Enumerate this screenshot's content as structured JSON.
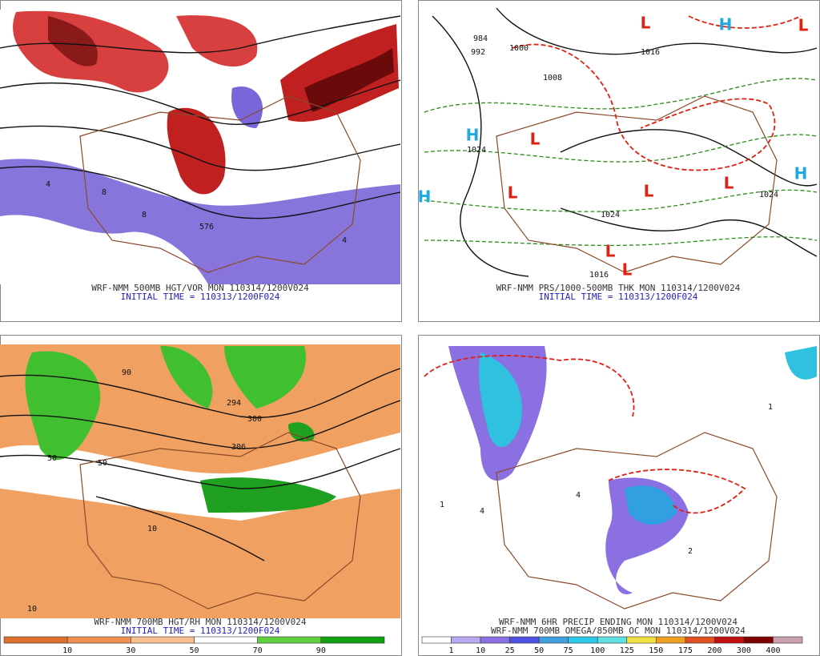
{
  "panels": [
    {
      "caption": [
        "WRF-NMM 500MB HGT/VOR MON 110314/1200V024",
        "INITIAL TIME = 110313/1200F024"
      ],
      "labels": [
        "576",
        "8",
        "4",
        "8",
        "4"
      ]
    },
    {
      "caption": [
        "WRF-NMM PRS/1000-500MB THK MON 110314/1200V024",
        "INITIAL TIME = 110313/1200F024"
      ],
      "highs": [
        "H",
        "H",
        "H",
        "H"
      ],
      "lows": [
        "L",
        "L",
        "L",
        "L",
        "L",
        "L",
        "L",
        "L"
      ],
      "labels": [
        "1016",
        "1024",
        "1024",
        "1008",
        "992",
        "984",
        "1000",
        "1016",
        "1024"
      ]
    },
    {
      "caption": [
        "WRF-NMM 700MB HGT/RH MON 110314/1200V024",
        "INITIAL TIME = 110313/1200F024"
      ],
      "labels": [
        "90",
        "50",
        "10",
        "300",
        "306",
        "294",
        "10",
        "50"
      ],
      "colorbar": [
        "10",
        "30",
        "50",
        "70",
        "90"
      ]
    },
    {
      "caption": [
        "WRF-NMM 6HR PRECIP ENDING MON 110314/1200V024",
        "WRF-NMM 700MB OMEGA/850MB OC MON 110314/1200V024"
      ],
      "labels": [
        "1",
        "4",
        "2",
        "4",
        "1"
      ],
      "colorbar": [
        "1",
        "10",
        "25",
        "50",
        "75",
        "100",
        "125",
        "150",
        "175",
        "200",
        "300",
        "400"
      ]
    }
  ]
}
